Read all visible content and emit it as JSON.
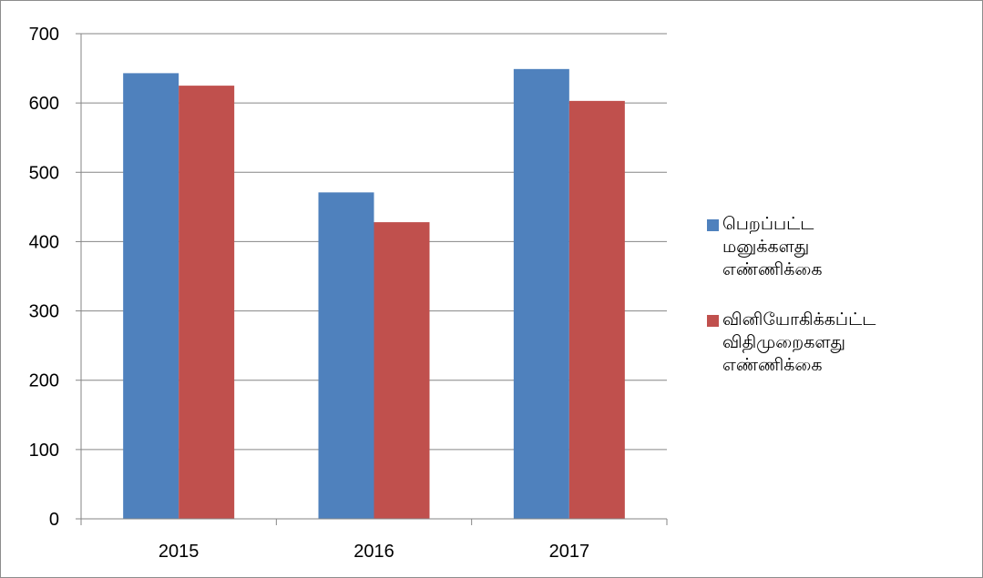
{
  "chart_data": {
    "type": "bar",
    "categories": [
      "2015",
      "2016",
      "2017"
    ],
    "series": [
      {
        "name": "பெறப்பட்ட மனுக்களது எண்ணிக்கை",
        "color": "#4f81bd",
        "values": [
          643,
          471,
          649
        ]
      },
      {
        "name": "வினியோகிக்கப்ட்ட விதிமுறைகளது எண்ணிக்கை",
        "color": "#c0504d",
        "values": [
          625,
          428,
          603
        ]
      }
    ],
    "ylim": [
      0,
      700
    ],
    "yticks": [
      "0",
      "100",
      "200",
      "300",
      "400",
      "500",
      "600",
      "700"
    ],
    "grid": true,
    "legend_position": "right"
  }
}
